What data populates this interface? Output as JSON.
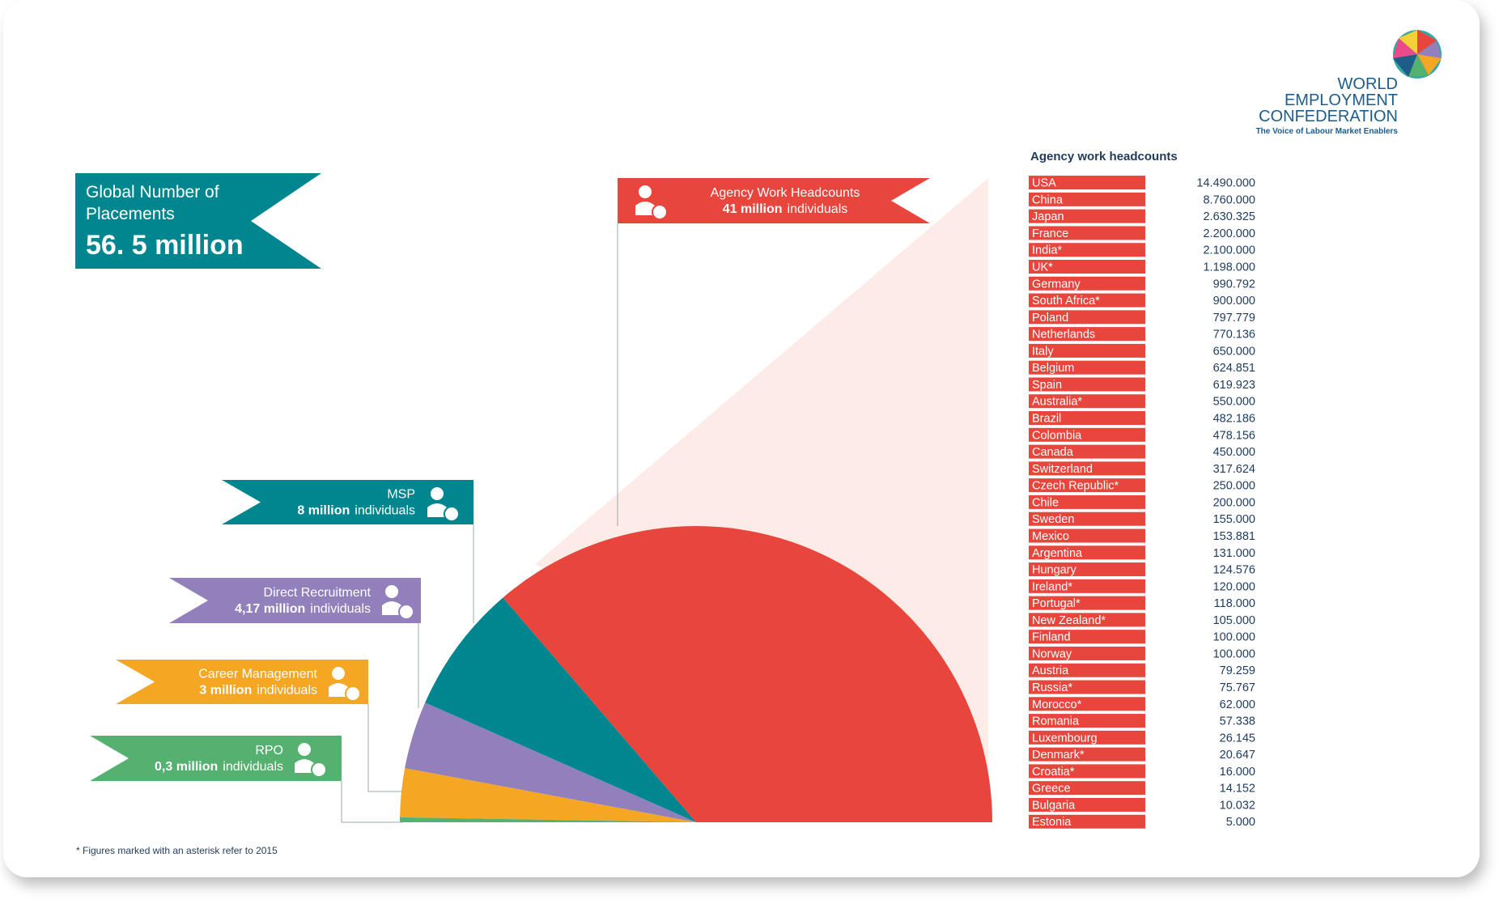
{
  "logo": {
    "lines": [
      "WORLD",
      "EMPLOYMENT",
      "CONFEDERATION"
    ],
    "tagline": "The Voice of Labour Market Enablers"
  },
  "summary": {
    "title": "Global Number of Placements",
    "total": "56. 5 million"
  },
  "chart_data": {
    "type": "pie",
    "half": true,
    "categories": [
      "Agency Work Headcounts",
      "MSP",
      "Direct Recruitment",
      "Career Management",
      "RPO"
    ],
    "values": [
      41,
      8,
      4.17,
      3,
      0.3
    ],
    "value_labels": [
      "41 million",
      "8 million",
      "4,17 million",
      "3 million",
      "0,3 million"
    ],
    "unit": "individuals",
    "colors": [
      "#e8453c",
      "#00868f",
      "#9180bc",
      "#f5a623",
      "#55b170"
    ]
  },
  "table": {
    "title": "Agency work headcounts",
    "rows": [
      [
        "USA",
        "14.490.000"
      ],
      [
        "China",
        "8.760.000"
      ],
      [
        "Japan",
        "2.630.325"
      ],
      [
        "France",
        "2.200.000"
      ],
      [
        "India*",
        "2.100.000"
      ],
      [
        "UK*",
        "1.198.000"
      ],
      [
        "Germany",
        "990.792"
      ],
      [
        "South Africa*",
        "900.000"
      ],
      [
        "Poland",
        "797.779"
      ],
      [
        "Netherlands",
        "770.136"
      ],
      [
        "Italy",
        "650.000"
      ],
      [
        "Belgium",
        "624.851"
      ],
      [
        "Spain",
        "619.923"
      ],
      [
        "Australia*",
        "550.000"
      ],
      [
        "Brazil",
        "482.186"
      ],
      [
        "Colombia",
        "478.156"
      ],
      [
        "Canada",
        "450.000"
      ],
      [
        "Switzerland",
        "317.624"
      ],
      [
        "Czech Republic*",
        "250.000"
      ],
      [
        "Chile",
        "200.000"
      ],
      [
        "Sweden",
        "155.000"
      ],
      [
        "Mexico",
        "153.881"
      ],
      [
        "Argentina",
        "131.000"
      ],
      [
        "Hungary",
        "124.576"
      ],
      [
        "Ireland*",
        "120.000"
      ],
      [
        "Portugal*",
        "118.000"
      ],
      [
        "New Zealand*",
        "105.000"
      ],
      [
        "Finland",
        "100.000"
      ],
      [
        "Norway",
        "100.000"
      ],
      [
        "Austria",
        "79.259"
      ],
      [
        "Russia*",
        "75.767"
      ],
      [
        "Morocco*",
        "62.000"
      ],
      [
        "Romania",
        "57.338"
      ],
      [
        "Luxembourg",
        "26.145"
      ],
      [
        "Denmark*",
        "20.647"
      ],
      [
        "Croatia*",
        "16.000"
      ],
      [
        "Greece",
        "14.152"
      ],
      [
        "Bulgaria",
        "10.032"
      ],
      [
        "Estonia",
        "5.000"
      ]
    ]
  },
  "footnote": "* Figures marked with an asterisk refer to 2015"
}
